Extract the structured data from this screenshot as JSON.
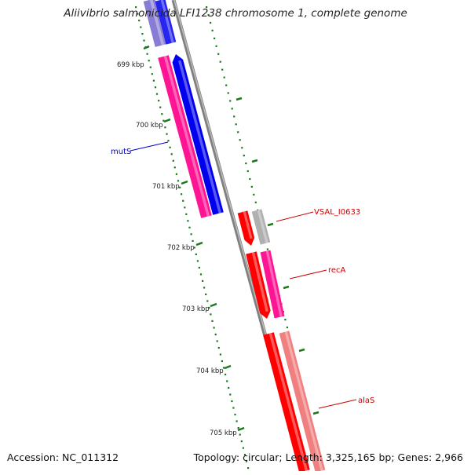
{
  "title": "Aliivibrio salmonicida LFI1238 chromosome 1, complete genome",
  "footer": {
    "accession": "Accession: NC_011312",
    "summary": "Topology: circular; Length: 3,325,165 bp; Genes: 2,966"
  },
  "ticks": [
    {
      "label": "699 kbp"
    },
    {
      "label": "700 kbp"
    },
    {
      "label": "701 kbp"
    },
    {
      "label": "702 kbp"
    },
    {
      "label": "703 kbp"
    },
    {
      "label": "704 kbp"
    },
    {
      "label": "705 kbp"
    }
  ],
  "gene_labels": [
    {
      "name": "mutS",
      "color": "#0000cc"
    },
    {
      "name": "VSAL_I0633",
      "color": "#cc0000"
    },
    {
      "name": "recA",
      "color": "#cc0000"
    },
    {
      "name": "alaS",
      "color": "#cc0000"
    }
  ],
  "colors": {
    "backbone": "#808080",
    "tick": "#1a7a1a",
    "forward_blue": "#0000ee",
    "magenta": "#ff1493",
    "red": "#ff0000",
    "light_red": "#f08080",
    "grey_feature": "#b0b0b0",
    "faded_blue": "#7b6fd0"
  }
}
